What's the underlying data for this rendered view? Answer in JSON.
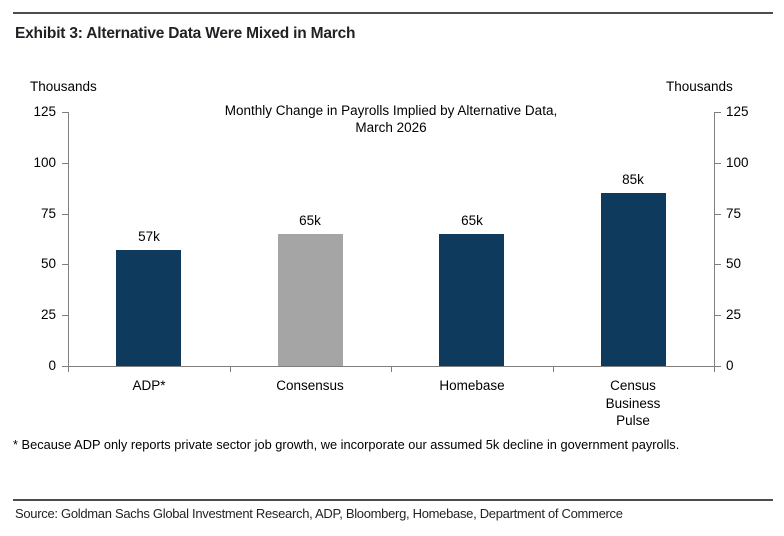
{
  "header": {
    "exhibit_title": "Exhibit 3: Alternative Data Were Mixed in March"
  },
  "chart_data": {
    "type": "bar",
    "title": "Monthly Change in Payrolls Implied by Alternative Data, March 2026",
    "title_lines": [
      "Monthly Change in Payrolls Implied by Alternative Data,",
      "March 2026"
    ],
    "left_axis_label": "Thousands",
    "right_axis_label": "Thousands",
    "ylim": [
      0,
      125
    ],
    "y_ticks": [
      0,
      25,
      50,
      75,
      100,
      125
    ],
    "grid": false,
    "legend": "none",
    "categories": [
      "ADP*",
      "Consensus",
      "Homebase",
      "Census Business Pulse"
    ],
    "category_label_lines": [
      [
        "ADP*"
      ],
      [
        "Consensus"
      ],
      [
        "Homebase"
      ],
      [
        "Census",
        "Business",
        "Pulse"
      ]
    ],
    "values": [
      57,
      65,
      65,
      85
    ],
    "data_labels": [
      "57k",
      "65k",
      "65k",
      "85k"
    ],
    "bar_colors": [
      "#0e3a5e",
      "#a5a5a5",
      "#0e3a5e",
      "#0e3a5e"
    ]
  },
  "footnote": "* Because ADP only reports private sector job growth, we incorporate our assumed 5k decline in government payrolls.",
  "source_line": "Source: Goldman Sachs Global Investment Research, ADP, Bloomberg, Homebase, Department of Commerce",
  "colors": {
    "bar_navy": "#0e3a5e",
    "bar_gray": "#a5a5a5",
    "axis": "#7f7f7f",
    "rule": "#4d4d4d",
    "text": "#000000"
  }
}
